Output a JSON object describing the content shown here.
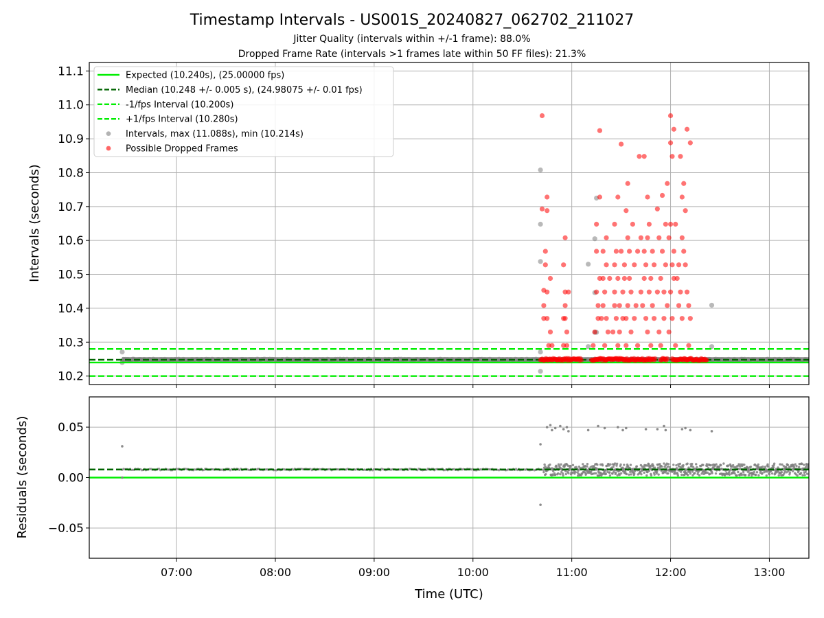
{
  "chart_data": {
    "type": "scatter",
    "title": "Timestamp Intervals - US001S_20240827_062702_211027",
    "subtitle_1": "Jitter Quality (intervals within +/-1 frame): 88.0%",
    "subtitle_2": "Dropped Frame Rate (intervals >1 frames late within 50 FF files): 21.3%",
    "x_axis": {
      "label": "Time (UTC)",
      "range": [
        "06:07",
        "13:24"
      ],
      "ticks": [
        "07:00",
        "08:00",
        "09:00",
        "10:00",
        "11:00",
        "12:00",
        "13:00"
      ]
    },
    "top_panel": {
      "ylabel": "Intervals (seconds)",
      "ylim": [
        10.175,
        11.125
      ],
      "yticks": [
        10.2,
        10.3,
        10.4,
        10.5,
        10.6,
        10.7,
        10.8,
        10.9,
        11.0,
        11.1
      ],
      "ytick_labels": [
        "10.2",
        "10.3",
        "10.4",
        "10.5",
        "10.6",
        "10.7",
        "10.8",
        "10.9",
        "11.0",
        "11.1"
      ],
      "grid": true,
      "legend_position": "top-left",
      "lines": [
        {
          "label": "Expected (10.240s), (25.00000 fps)",
          "y": 10.24,
          "color": "#00ee00",
          "style": "solid"
        },
        {
          "label": "Median (10.248 +/- 0.005 s), (24.98075 +/- 0.01 fps)",
          "y": 10.248,
          "color": "#006400",
          "style": "dashed"
        },
        {
          "label": "-1/fps Interval (10.200s)",
          "y": 10.2,
          "color": "#00ee00",
          "style": "dashed"
        },
        {
          "label": "+1/fps Interval (10.280s)",
          "y": 10.28,
          "color": "#00ee00",
          "style": "dashed"
        }
      ],
      "series": [
        {
          "label": "Intervals, max (11.088s), min (10.214s)",
          "color": "#808080",
          "baseline": {
            "y": 10.248,
            "x_start": "06:27",
            "x_end": "13:24"
          },
          "points": [
            [
              "06:27",
              10.271
            ],
            [
              "06:27",
              10.24
            ],
            [
              "10:41",
              10.808
            ],
            [
              "10:41",
              10.648
            ],
            [
              "10:41",
              10.538
            ],
            [
              "10:41",
              10.271
            ],
            [
              "10:41",
              10.214
            ],
            [
              "11:10",
              10.53
            ],
            [
              "11:10",
              10.287
            ],
            [
              "11:14",
              10.605
            ],
            [
              "11:14",
              10.446
            ],
            [
              "11:14",
              10.329
            ],
            [
              "11:15",
              10.725
            ],
            [
              "11:15",
              10.329
            ],
            [
              "12:25",
              10.409
            ],
            [
              "12:25",
              10.287
            ]
          ]
        },
        {
          "label": "Possible Dropped Frames",
          "color": "#ff0000",
          "band_y": 10.249,
          "band_segments": [
            [
              "10:41",
              "11:06"
            ],
            [
              "11:12",
              "11:51"
            ],
            [
              "11:54",
              "11:58"
            ],
            [
              "12:01",
              "12:22"
            ]
          ],
          "points": [
            [
              "10:42",
              10.968
            ],
            [
              "10:42",
              10.693
            ],
            [
              "10:43",
              10.453
            ],
            [
              "10:43",
              10.408
            ],
            [
              "10:43",
              10.37
            ],
            [
              "10:44",
              10.568
            ],
            [
              "10:44",
              10.528
            ],
            [
              "10:45",
              10.728
            ],
            [
              "10:45",
              10.688
            ],
            [
              "10:45",
              10.448
            ],
            [
              "10:45",
              10.37
            ],
            [
              "10:46",
              10.29
            ],
            [
              "10:47",
              10.488
            ],
            [
              "10:47",
              10.33
            ],
            [
              "10:48",
              10.29
            ],
            [
              "10:55",
              10.528
            ],
            [
              "10:55",
              10.37
            ],
            [
              "10:55",
              10.29
            ],
            [
              "10:56",
              10.608
            ],
            [
              "10:56",
              10.448
            ],
            [
              "10:56",
              10.408
            ],
            [
              "10:56",
              10.37
            ],
            [
              "10:57",
              10.33
            ],
            [
              "10:57",
              10.29
            ],
            [
              "10:58",
              10.448
            ],
            [
              "11:13",
              10.29
            ],
            [
              "11:14",
              10.33
            ],
            [
              "11:15",
              10.648
            ],
            [
              "11:15",
              10.568
            ],
            [
              "11:15",
              10.448
            ],
            [
              "11:16",
              10.408
            ],
            [
              "11:16",
              10.37
            ],
            [
              "11:17",
              10.924
            ],
            [
              "11:17",
              10.728
            ],
            [
              "11:17",
              10.488
            ],
            [
              "11:18",
              10.37
            ],
            [
              "11:19",
              10.568
            ],
            [
              "11:19",
              10.488
            ],
            [
              "11:19",
              10.408
            ],
            [
              "11:20",
              10.448
            ],
            [
              "11:20",
              10.29
            ],
            [
              "11:21",
              10.608
            ],
            [
              "11:21",
              10.528
            ],
            [
              "11:21",
              10.37
            ],
            [
              "11:22",
              10.33
            ],
            [
              "11:23",
              10.488
            ],
            [
              "11:25",
              10.33
            ],
            [
              "11:26",
              10.648
            ],
            [
              "11:26",
              10.528
            ],
            [
              "11:26",
              10.448
            ],
            [
              "11:26",
              10.408
            ],
            [
              "11:27",
              10.568
            ],
            [
              "11:27",
              10.37
            ],
            [
              "11:28",
              10.728
            ],
            [
              "11:28",
              10.488
            ],
            [
              "11:28",
              10.29
            ],
            [
              "11:29",
              10.408
            ],
            [
              "11:29",
              10.33
            ],
            [
              "11:30",
              10.884
            ],
            [
              "11:30",
              10.568
            ],
            [
              "11:31",
              10.448
            ],
            [
              "11:31",
              10.37
            ],
            [
              "11:32",
              10.528
            ],
            [
              "11:32",
              10.488
            ],
            [
              "11:33",
              10.688
            ],
            [
              "11:33",
              10.37
            ],
            [
              "11:33",
              10.29
            ],
            [
              "11:34",
              10.768
            ],
            [
              "11:34",
              10.608
            ],
            [
              "11:34",
              10.408
            ],
            [
              "11:35",
              10.568
            ],
            [
              "11:35",
              10.488
            ],
            [
              "11:36",
              10.448
            ],
            [
              "11:36",
              10.33
            ],
            [
              "11:37",
              10.648
            ],
            [
              "11:38",
              10.528
            ],
            [
              "11:38",
              10.37
            ],
            [
              "11:39",
              10.408
            ],
            [
              "11:40",
              10.568
            ],
            [
              "11:40",
              10.29
            ],
            [
              "11:41",
              10.848
            ],
            [
              "11:42",
              10.608
            ],
            [
              "11:42",
              10.448
            ],
            [
              "11:43",
              10.408
            ],
            [
              "11:44",
              10.848
            ],
            [
              "11:44",
              10.568
            ],
            [
              "11:44",
              10.488
            ],
            [
              "11:45",
              10.528
            ],
            [
              "11:45",
              10.37
            ],
            [
              "11:46",
              10.728
            ],
            [
              "11:46",
              10.608
            ],
            [
              "11:46",
              10.33
            ],
            [
              "11:47",
              10.648
            ],
            [
              "11:47",
              10.448
            ],
            [
              "11:48",
              10.488
            ],
            [
              "11:48",
              10.29
            ],
            [
              "11:49",
              10.568
            ],
            [
              "11:49",
              10.408
            ],
            [
              "11:50",
              10.528
            ],
            [
              "11:50",
              10.37
            ],
            [
              "11:52",
              10.693
            ],
            [
              "11:52",
              10.448
            ],
            [
              "11:53",
              10.608
            ],
            [
              "11:53",
              10.33
            ],
            [
              "11:54",
              10.488
            ],
            [
              "11:54",
              10.29
            ],
            [
              "11:55",
              10.733
            ],
            [
              "11:55",
              10.568
            ],
            [
              "11:56",
              10.448
            ],
            [
              "11:56",
              10.37
            ],
            [
              "11:57",
              10.648
            ],
            [
              "11:57",
              10.528
            ],
            [
              "11:58",
              10.768
            ],
            [
              "11:58",
              10.408
            ],
            [
              "11:59",
              10.608
            ],
            [
              "11:59",
              10.33
            ],
            [
              "12:00",
              10.968
            ],
            [
              "12:00",
              10.888
            ],
            [
              "12:00",
              10.648
            ],
            [
              "12:00",
              10.448
            ],
            [
              "12:01",
              10.848
            ],
            [
              "12:01",
              10.528
            ],
            [
              "12:01",
              10.37
            ],
            [
              "12:02",
              10.928
            ],
            [
              "12:02",
              10.568
            ],
            [
              "12:02",
              10.488
            ],
            [
              "12:03",
              10.648
            ],
            [
              "12:03",
              10.29
            ],
            [
              "12:04",
              10.488
            ],
            [
              "12:05",
              10.528
            ],
            [
              "12:05",
              10.408
            ],
            [
              "12:06",
              10.848
            ],
            [
              "12:06",
              10.448
            ],
            [
              "12:07",
              10.728
            ],
            [
              "12:07",
              10.608
            ],
            [
              "12:07",
              10.37
            ],
            [
              "12:08",
              10.768
            ],
            [
              "12:08",
              10.568
            ],
            [
              "12:09",
              10.688
            ],
            [
              "12:09",
              10.528
            ],
            [
              "12:10",
              10.928
            ],
            [
              "12:10",
              10.448
            ],
            [
              "12:11",
              10.408
            ],
            [
              "12:11",
              10.29
            ],
            [
              "12:12",
              10.888
            ],
            [
              "12:12",
              10.37
            ]
          ]
        }
      ]
    },
    "bottom_panel": {
      "ylabel": "Residuals (seconds)",
      "ylim": [
        -0.08,
        0.08
      ],
      "yticks": [
        -0.05,
        0.0,
        0.05
      ],
      "ytick_labels": [
        "−0.05",
        "0.00",
        "0.05"
      ],
      "grid": true,
      "lines": [
        {
          "y": 0.0,
          "color": "#00ee00",
          "style": "solid"
        },
        {
          "y": 0.008,
          "color": "#006400",
          "style": "dashed"
        }
      ],
      "series": [
        {
          "color": "#808080",
          "baseline": {
            "y": 0.008,
            "x_start": "06:27",
            "x_end": "13:24"
          },
          "points": [
            [
              "06:27",
              0.031
            ],
            [
              "06:27",
              0.0
            ],
            [
              "10:41",
              0.033
            ],
            [
              "10:41",
              -0.027
            ],
            [
              "10:45",
              0.05
            ],
            [
              "10:47",
              0.052
            ],
            [
              "10:48",
              0.047
            ],
            [
              "10:50",
              0.049
            ],
            [
              "10:53",
              0.051
            ],
            [
              "10:55",
              0.048
            ],
            [
              "10:57",
              0.05
            ],
            [
              "10:58",
              0.046
            ],
            [
              "11:10",
              0.047
            ],
            [
              "11:16",
              0.051
            ],
            [
              "11:20",
              0.049
            ],
            [
              "11:28",
              0.05
            ],
            [
              "11:31",
              0.047
            ],
            [
              "11:33",
              0.049
            ],
            [
              "11:45",
              0.048
            ],
            [
              "11:52",
              0.048
            ],
            [
              "11:56",
              0.051
            ],
            [
              "11:57",
              0.047
            ],
            [
              "12:07",
              0.048
            ],
            [
              "12:09",
              0.049
            ],
            [
              "12:12",
              0.047
            ],
            [
              "12:25",
              0.046
            ]
          ],
          "scatter_band": {
            "x_start": "10:43",
            "x_end": "13:24",
            "y_min": 0.002,
            "y_max": 0.014
          }
        }
      ]
    }
  }
}
